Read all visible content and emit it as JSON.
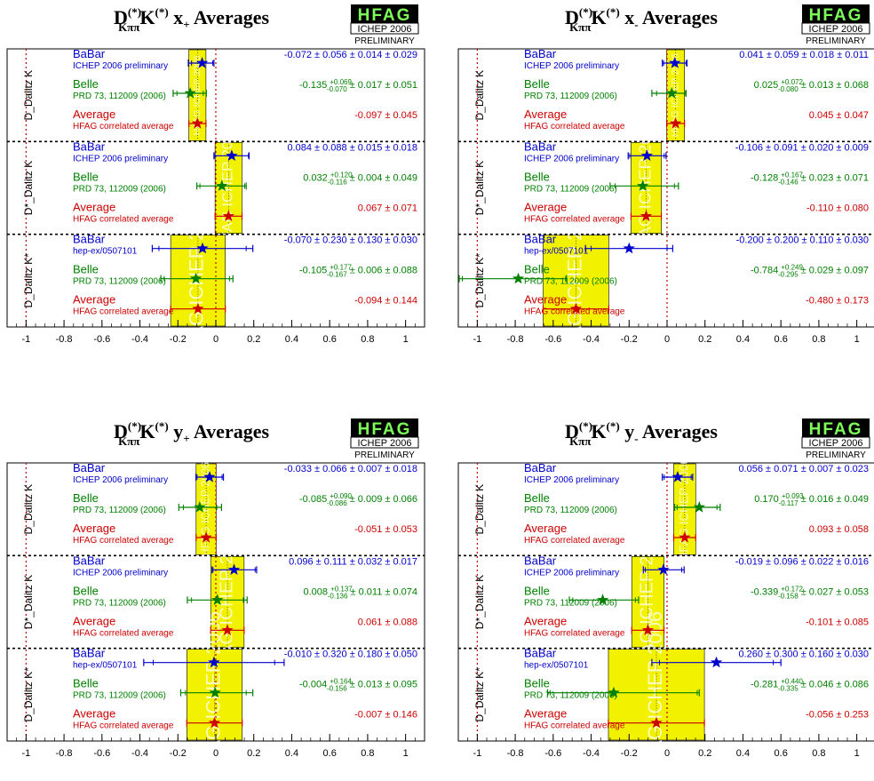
{
  "logo": {
    "name": "HFAG",
    "subtitle": "ICHEP 2006",
    "status": "PRELIMINARY"
  },
  "colors": {
    "babar": "#0000cc",
    "belle": "#008000",
    "average": "#cc0000",
    "band": "#f2f200"
  },
  "band_label": "HFAG ICHEP 2006",
  "chart_data": [
    {
      "type": "forest",
      "title": {
        "main": "D",
        "sup": "(*)",
        "sub": "Kππ",
        "k": "K",
        "k_sup": "(*)",
        "var": "x",
        "var_sub": "+",
        "suffix": "Averages"
      },
      "xlim": [
        -1.1,
        1.1
      ],
      "xticks": [
        "-1",
        "-0.8",
        "-0.6",
        "-0.4",
        "-0.2",
        "0",
        "0.2",
        "0.4",
        "0.6",
        "0.8",
        "1"
      ],
      "groups": [
        {
          "label": "D_Dalitz K",
          "band": [
            -0.142,
            -0.052
          ],
          "entries": [
            {
              "exp": "BaBar",
              "ref": "ICHEP 2006 preliminary",
              "value": "-0.072 ± 0.056 ± 0.014 ± 0.029",
              "x": -0.072,
              "lo": -0.145,
              "hi": -0.01,
              "stat_lo": -0.128,
              "stat_hi": -0.016
            },
            {
              "exp": "Belle",
              "ref": "PRD 73, 112009 (2006)",
              "value_central": "-0.135",
              "plus": "+0.069",
              "minus": "-0.070",
              "value_rest": "± 0.017 ± 0.051",
              "x": -0.135,
              "lo": -0.225,
              "hi": -0.05,
              "stat_lo": -0.205,
              "stat_hi": -0.066
            },
            {
              "exp": "Average",
              "ref": "HFAG correlated average",
              "value": "-0.097 ± 0.045",
              "x": -0.097,
              "lo": -0.142,
              "hi": -0.052
            }
          ]
        },
        {
          "label": "D*_Dalitz K",
          "band": [
            -0.004,
            0.138
          ],
          "entries": [
            {
              "exp": "BaBar",
              "ref": "ICHEP 2006 preliminary",
              "value": "0.084 ± 0.088 ± 0.015 ± 0.018",
              "x": 0.084,
              "lo": -0.01,
              "hi": 0.175,
              "stat_lo": -0.004,
              "stat_hi": 0.172
            },
            {
              "exp": "Belle",
              "ref": "PRD 73, 112009 (2006)",
              "value_central": "0.032",
              "plus": "+0.120",
              "minus": "-0.116",
              "value_rest": "± 0.004 ± 0.049",
              "x": 0.032,
              "lo": -0.1,
              "hi": 0.16,
              "stat_lo": -0.084,
              "stat_hi": 0.152
            },
            {
              "exp": "Average",
              "ref": "HFAG correlated average",
              "value": "0.067 ± 0.071",
              "x": 0.067,
              "lo": -0.004,
              "hi": 0.138
            }
          ]
        },
        {
          "label": "D_Dalitz K*",
          "band": [
            -0.238,
            0.05
          ],
          "entries": [
            {
              "exp": "BaBar",
              "ref": "hep-ex/0507101",
              "value": "-0.070 ± 0.230 ± 0.130 ± 0.030",
              "x": -0.07,
              "lo": -0.335,
              "hi": 0.195,
              "stat_lo": -0.3,
              "stat_hi": 0.16
            },
            {
              "exp": "Belle",
              "ref": "PRD 73, 112009 (2006)",
              "value_central": "-0.105",
              "plus": "+0.177",
              "minus": "-0.167",
              "value_rest": "± 0.006 ± 0.088",
              "x": -0.105,
              "lo": -0.29,
              "hi": 0.09,
              "stat_lo": -0.272,
              "stat_hi": 0.072
            },
            {
              "exp": "Average",
              "ref": "HFAG correlated average",
              "value": "-0.094 ± 0.144",
              "x": -0.094,
              "lo": -0.238,
              "hi": 0.05
            }
          ]
        }
      ]
    },
    {
      "type": "forest",
      "title": {
        "main": "D",
        "sup": "(*)",
        "sub": "Kππ",
        "k": "K",
        "k_sup": "(*)",
        "var": "x",
        "var_sub": "-",
        "suffix": "Averages"
      },
      "xlim": [
        -1.1,
        1.1
      ],
      "xticks": [
        "-1",
        "-0.8",
        "-0.6",
        "-0.4",
        "-0.2",
        "0",
        "0.2",
        "0.4",
        "0.6",
        "0.8",
        "1"
      ],
      "groups": [
        {
          "label": "D_Dalitz K",
          "band": [
            -0.002,
            0.092
          ],
          "entries": [
            {
              "exp": "BaBar",
              "ref": "ICHEP 2006 preliminary",
              "value": "0.041 ± 0.059 ± 0.018 ± 0.011",
              "x": 0.041,
              "lo": -0.025,
              "hi": 0.105,
              "stat_lo": -0.018,
              "stat_hi": 0.1
            },
            {
              "exp": "Belle",
              "ref": "PRD 73, 112009 (2006)",
              "value_central": "0.025",
              "plus": "+0.072",
              "minus": "-0.080",
              "value_rest": "± 0.013 ± 0.068",
              "x": 0.025,
              "lo": -0.08,
              "hi": 0.1,
              "stat_lo": -0.055,
              "stat_hi": 0.097
            },
            {
              "exp": "Average",
              "ref": "HFAG correlated average",
              "value": "0.045 ± 0.047",
              "x": 0.045,
              "lo": -0.002,
              "hi": 0.092
            }
          ]
        },
        {
          "label": "D*_Dalitz K",
          "band": [
            -0.19,
            -0.03
          ],
          "entries": [
            {
              "exp": "BaBar",
              "ref": "ICHEP 2006 preliminary",
              "value": "-0.106 ± 0.091 ± 0.020 ± 0.009",
              "x": -0.106,
              "lo": -0.205,
              "hi": -0.005,
              "stat_lo": -0.197,
              "stat_hi": -0.015
            },
            {
              "exp": "Belle",
              "ref": "PRD 73, 112009 (2006)",
              "value_central": "-0.128",
              "plus": "+0.167",
              "minus": "-0.146",
              "value_rest": "± 0.023 ± 0.071",
              "x": -0.128,
              "lo": -0.3,
              "hi": 0.06,
              "stat_lo": -0.274,
              "stat_hi": 0.039
            },
            {
              "exp": "Average",
              "ref": "HFAG correlated average",
              "value": "-0.110 ± 0.080",
              "x": -0.11,
              "lo": -0.19,
              "hi": -0.03
            }
          ]
        },
        {
          "label": "D_Dalitz K*",
          "band": [
            -0.653,
            -0.307
          ],
          "entries": [
            {
              "exp": "BaBar",
              "ref": "hep-ex/0507101",
              "value": "-0.200 ± 0.200 ± 0.110 ± 0.030",
              "x": -0.2,
              "lo": -0.43,
              "hi": 0.03,
              "stat_lo": -0.4,
              "stat_hi": 0.0
            },
            {
              "exp": "Belle",
              "ref": "PRD 73, 112009 (2006)",
              "value_central": "-0.784",
              "plus": "+0.249",
              "minus": "-0.295",
              "value_rest": "± 0.029 ± 0.097",
              "x": -0.784,
              "lo": -1.1,
              "hi": -0.53,
              "stat_lo": -1.079,
              "stat_hi": -0.535
            },
            {
              "exp": "Average",
              "ref": "HFAG correlated average",
              "value": "-0.480 ± 0.173",
              "x": -0.48,
              "lo": -0.653,
              "hi": -0.307
            }
          ]
        }
      ]
    },
    {
      "type": "forest",
      "title": {
        "main": "D",
        "sup": "(*)",
        "sub": "Kππ",
        "k": "K",
        "k_sup": "(*)",
        "var": "y",
        "var_sub": "+",
        "suffix": "Averages"
      },
      "xlim": [
        -1.1,
        1.1
      ],
      "xticks": [
        "-1",
        "-0.8",
        "-0.6",
        "-0.4",
        "-0.2",
        "0",
        "0.2",
        "0.4",
        "0.6",
        "0.8",
        "1"
      ],
      "groups": [
        {
          "label": "D_Dalitz K",
          "band": [
            -0.104,
            0.002
          ],
          "entries": [
            {
              "exp": "BaBar",
              "ref": "ICHEP 2006 preliminary",
              "value": "-0.033 ± 0.066 ± 0.007 ± 0.018",
              "x": -0.033,
              "lo": -0.105,
              "hi": 0.04,
              "stat_lo": -0.099,
              "stat_hi": 0.033
            },
            {
              "exp": "Belle",
              "ref": "PRD 73, 112009 (2006)",
              "value_central": "-0.085",
              "plus": "+0.090",
              "minus": "-0.086",
              "value_rest": "± 0.009 ± 0.066",
              "x": -0.085,
              "lo": -0.195,
              "hi": 0.03,
              "stat_lo": -0.171,
              "stat_hi": 0.005
            },
            {
              "exp": "Average",
              "ref": "HFAG correlated average",
              "value": "-0.051 ± 0.053",
              "x": -0.051,
              "lo": -0.104,
              "hi": 0.002
            }
          ]
        },
        {
          "label": "D*_Dalitz K",
          "band": [
            -0.027,
            0.149
          ],
          "entries": [
            {
              "exp": "BaBar",
              "ref": "ICHEP 2006 preliminary",
              "value": "0.096 ± 0.111 ± 0.032 ± 0.017",
              "x": 0.096,
              "lo": -0.02,
              "hi": 0.215,
              "stat_lo": -0.015,
              "stat_hi": 0.207
            },
            {
              "exp": "Belle",
              "ref": "PRD 73, 112009 (2006)",
              "value_central": "0.008",
              "plus": "+0.137",
              "minus": "-0.136",
              "value_rest": "± 0.011 ± 0.074",
              "x": 0.008,
              "lo": -0.15,
              "hi": 0.165,
              "stat_lo": -0.128,
              "stat_hi": 0.145
            },
            {
              "exp": "Average",
              "ref": "HFAG correlated average",
              "value": "0.061 ± 0.088",
              "x": 0.061,
              "lo": -0.027,
              "hi": 0.149
            }
          ]
        },
        {
          "label": "D_Dalitz K*",
          "band": [
            -0.153,
            0.139
          ],
          "entries": [
            {
              "exp": "BaBar",
              "ref": "hep-ex/0507101",
              "value": "-0.010 ± 0.320 ± 0.180 ± 0.050",
              "x": -0.01,
              "lo": -0.38,
              "hi": 0.36,
              "stat_lo": -0.33,
              "stat_hi": 0.31
            },
            {
              "exp": "Belle",
              "ref": "PRD 73, 112009 (2006)",
              "value_central": "-0.004",
              "plus": "+0.164",
              "minus": "-0.156",
              "value_rest": "± 0.013 ± 0.095",
              "x": -0.004,
              "lo": -0.185,
              "hi": 0.195,
              "stat_lo": -0.16,
              "stat_hi": 0.16
            },
            {
              "exp": "Average",
              "ref": "HFAG correlated average",
              "value": "-0.007 ± 0.146",
              "x": -0.007,
              "lo": -0.153,
              "hi": 0.139
            }
          ]
        }
      ]
    },
    {
      "type": "forest",
      "title": {
        "main": "D",
        "sup": "(*)",
        "sub": "Kππ",
        "k": "K",
        "k_sup": "(*)",
        "var": "y",
        "var_sub": "-",
        "suffix": "Averages"
      },
      "xlim": [
        -1.1,
        1.1
      ],
      "xticks": [
        "-1",
        "-0.8",
        "-0.6",
        "-0.4",
        "-0.2",
        "0",
        "0.2",
        "0.4",
        "0.6",
        "0.8",
        "1"
      ],
      "groups": [
        {
          "label": "D_Dalitz K",
          "band": [
            0.035,
            0.151
          ],
          "entries": [
            {
              "exp": "BaBar",
              "ref": "ICHEP 2006 preliminary",
              "value": "0.056 ± 0.071 ± 0.007 ± 0.023",
              "x": 0.056,
              "lo": -0.025,
              "hi": 0.135,
              "stat_lo": -0.015,
              "stat_hi": 0.127
            },
            {
              "exp": "Belle",
              "ref": "PRD 73, 112009 (2006)",
              "value_central": "0.170",
              "plus": "+0.093",
              "minus": "-0.117",
              "value_rest": "± 0.016 ± 0.049",
              "x": 0.17,
              "lo": 0.04,
              "hi": 0.28,
              "stat_lo": 0.053,
              "stat_hi": 0.263
            },
            {
              "exp": "Average",
              "ref": "HFAG correlated average",
              "value": "0.093 ± 0.058",
              "x": 0.093,
              "lo": 0.035,
              "hi": 0.151
            }
          ]
        },
        {
          "label": "D*_Dalitz K",
          "band": [
            -0.186,
            -0.016
          ],
          "entries": [
            {
              "exp": "BaBar",
              "ref": "ICHEP 2006 preliminary",
              "value": "-0.019 ± 0.096 ± 0.022 ± 0.016",
              "x": -0.019,
              "lo": -0.125,
              "hi": 0.09,
              "stat_lo": -0.115,
              "stat_hi": 0.077
            },
            {
              "exp": "Belle",
              "ref": "PRD 73, 112009 (2006)",
              "value_central": "-0.339",
              "plus": "+0.172",
              "minus": "-0.158",
              "value_rest": "± 0.027 ± 0.053",
              "x": -0.339,
              "lo": -0.515,
              "hi": -0.15,
              "stat_lo": -0.497,
              "stat_hi": -0.167
            },
            {
              "exp": "Average",
              "ref": "HFAG correlated average",
              "value": "-0.101 ± 0.085",
              "x": -0.101,
              "lo": -0.186,
              "hi": -0.016
            }
          ]
        },
        {
          "label": "D_Dalitz K*",
          "band": [
            -0.309,
            0.197
          ],
          "entries": [
            {
              "exp": "BaBar",
              "ref": "hep-ex/0507101",
              "value": "0.260 ± 0.300 ± 0.160 ± 0.030",
              "x": 0.26,
              "lo": -0.08,
              "hi": 0.6,
              "stat_lo": -0.04,
              "stat_hi": 0.56
            },
            {
              "exp": "Belle",
              "ref": "PRD 73, 112009 (2006)",
              "value_central": "-0.281",
              "plus": "+0.440",
              "minus": "-0.335",
              "value_rest": "± 0.046 ± 0.086",
              "x": -0.281,
              "lo": -0.63,
              "hi": 0.17,
              "stat_lo": -0.616,
              "stat_hi": 0.159
            },
            {
              "exp": "Average",
              "ref": "HFAG correlated average",
              "value": "-0.056 ± 0.253",
              "x": -0.056,
              "lo": -0.309,
              "hi": 0.197
            }
          ]
        }
      ]
    }
  ]
}
